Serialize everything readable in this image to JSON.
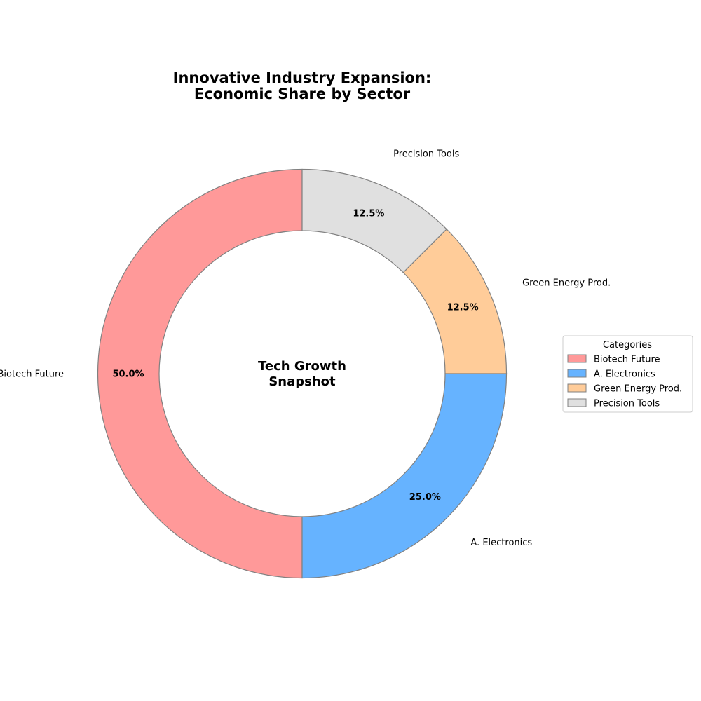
{
  "chart_data": {
    "type": "pie",
    "style": "donut",
    "title_lines": [
      "Innovative Industry Expansion:",
      "Economic Share by Sector"
    ],
    "center_label_lines": [
      "Tech Growth",
      "Snapshot"
    ],
    "categories": [
      "Biotech Future",
      "A. Electronics",
      "Green Energy Prod.",
      "Precision Tools"
    ],
    "values": [
      50.0,
      25.0,
      12.5,
      12.5
    ],
    "percent_labels": [
      "50.0%",
      "25.0%",
      "12.5%",
      "12.5%"
    ],
    "colors": [
      "#ff9999",
      "#66b3ff",
      "#ffcc99",
      "#e0e0e0"
    ],
    "edge_color": "#808080",
    "start_angle_deg": 90,
    "direction": "counterclockwise",
    "legend": {
      "title": "Categories",
      "entries": [
        "Biotech Future",
        "A. Electronics",
        "Green Energy Prod.",
        "Precision Tools"
      ],
      "placement": "right"
    }
  }
}
